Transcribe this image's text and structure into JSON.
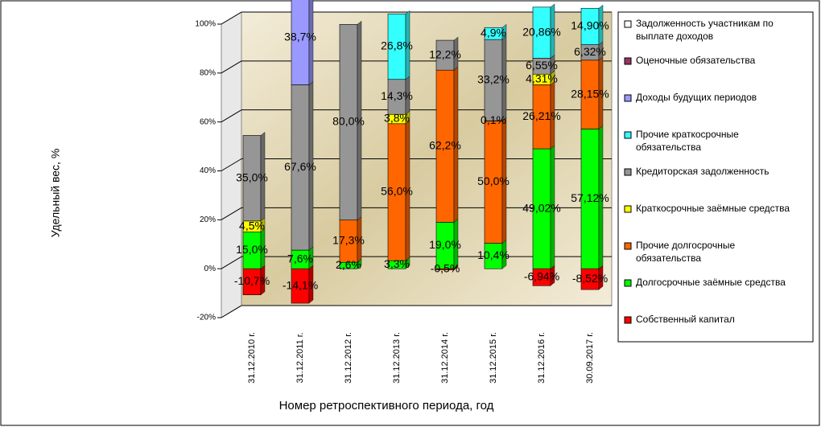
{
  "chart_data": {
    "type": "bar",
    "stacked": true,
    "y_label": "Удельный вес, %",
    "x_label": "Номер ретроспективного периода, год",
    "categories": [
      "31.12.2010 г.",
      "31.12.2011 г.",
      "31.12.2012 г.",
      "31.12.2013 г.",
      "31.12.2014 г.",
      "31.12.2015 г.",
      "31.12.2016 г.",
      "30.09.2017 г."
    ],
    "ylim": [
      -20,
      100
    ],
    "yticks": [
      {
        "value": -20,
        "label": "-20%"
      },
      {
        "value": 0,
        "label": "0%"
      },
      {
        "value": 20,
        "label": "20%"
      },
      {
        "value": 40,
        "label": "40%"
      },
      {
        "value": 60,
        "label": "60%"
      },
      {
        "value": 80,
        "label": "80%"
      },
      {
        "value": 100,
        "label": "100%"
      }
    ],
    "grid": true,
    "legend": "right",
    "series": [
      {
        "name": "Собственный капитал",
        "color": "#ff0000",
        "values": [
          -10.7,
          -14.1,
          null,
          null,
          -0.5,
          null,
          -6.94,
          -8.52
        ],
        "value_labels": [
          "-10,7%",
          "-14,1%",
          null,
          null,
          "-0,5%",
          null,
          "-6,94%",
          "-8,52%"
        ]
      },
      {
        "name": "Долгосрочные заёмные средства",
        "color": "#00ff00",
        "values": [
          15.0,
          7.6,
          2.6,
          3.3,
          19.0,
          10.4,
          49.02,
          57.12
        ],
        "value_labels": [
          "15,0%",
          "7,6%",
          "2,6%",
          "3,3%",
          "19,0%",
          "10,4%",
          "49,02%",
          "57,12%"
        ]
      },
      {
        "name": "Прочие долгосрочные обязательства",
        "color": "#ff6600",
        "values": [
          null,
          null,
          17.3,
          56.0,
          62.2,
          50.0,
          26.21,
          28.15
        ],
        "value_labels": [
          null,
          null,
          "17,3%",
          "56,0%",
          "62,2%",
          "50,0%",
          "26,21%",
          "28,15%"
        ]
      },
      {
        "name": "Краткосрочные заёмные средства",
        "color": "#ffff00",
        "values": [
          4.5,
          null,
          null,
          3.8,
          null,
          0.1,
          4.31,
          null
        ],
        "value_labels": [
          "4,5%",
          null,
          null,
          "3,8%",
          null,
          "0,1%",
          "4,31%",
          null
        ]
      },
      {
        "name": "Кредиторская задолженность",
        "color": "#969696",
        "values": [
          35.0,
          67.6,
          80.0,
          14.3,
          12.2,
          33.2,
          6.55,
          6.32
        ],
        "value_labels": [
          "35,0%",
          "67,6%",
          "80,0%",
          "14,3%",
          "12,2%",
          "33,2%",
          "6,55%",
          "6,32%"
        ]
      },
      {
        "name": "Прочие краткосрочные обязательства",
        "color": "#33ffff",
        "values": [
          null,
          null,
          null,
          26.8,
          null,
          4.9,
          20.86,
          14.9
        ],
        "value_labels": [
          null,
          null,
          null,
          "26,8%",
          null,
          "4,9%",
          "20,86%",
          "14,90%"
        ]
      },
      {
        "name": "Доходы будущих периодов",
        "color": "#9999ff",
        "values": [
          null,
          38.7,
          null,
          null,
          null,
          null,
          null,
          null
        ],
        "value_labels": [
          null,
          "38,7%",
          null,
          null,
          null,
          null,
          null,
          null
        ]
      },
      {
        "name": "Оценочные обязательства",
        "color": "#993366",
        "values": [
          null,
          38.7,
          null,
          null,
          null,
          null,
          null,
          null
        ],
        "value_labels": [
          null,
          "38,7%",
          null,
          null,
          null,
          null,
          null,
          null
        ]
      },
      {
        "name": "Задолженность участникам по выплате доходов",
        "color": "#ffffff",
        "values": [
          null,
          null,
          null,
          null,
          null,
          null,
          null,
          null
        ]
      }
    ]
  }
}
